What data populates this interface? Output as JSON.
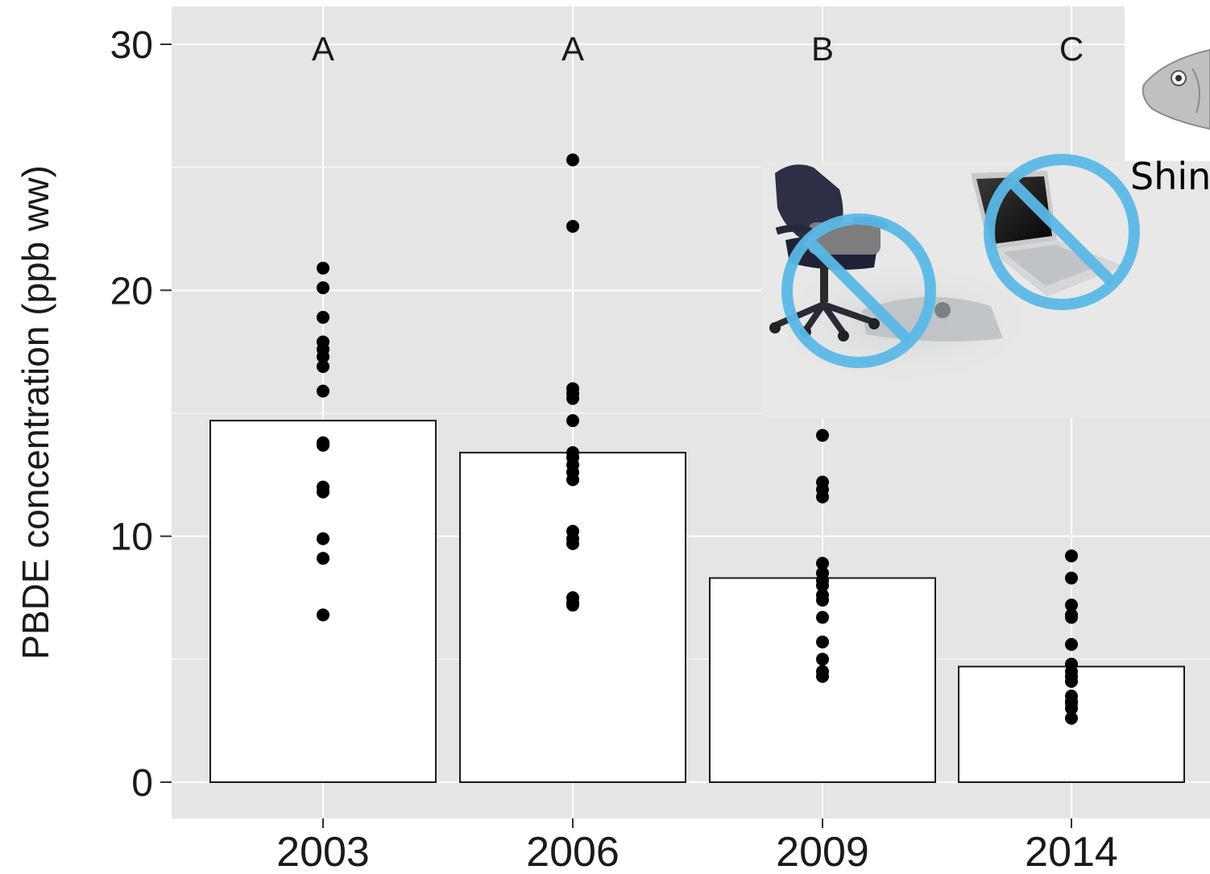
{
  "chart_data": {
    "type": "bar",
    "title": "",
    "xlabel": "",
    "ylabel": "PBDE concentration (ppb ww)",
    "ylim": [
      0,
      30
    ],
    "yticks": [
      0,
      10,
      20,
      30
    ],
    "grid": true,
    "categories": [
      "2003",
      "2006",
      "2009",
      "2014"
    ],
    "values": [
      14.7,
      13.4,
      8.3,
      4.7
    ],
    "group_letters": [
      "A",
      "A",
      "B",
      "C"
    ],
    "points": [
      [
        20.9,
        20.1,
        18.9,
        17.9,
        17.6,
        17.3,
        16.9,
        15.9,
        13.8,
        13.7,
        12.0,
        11.8,
        9.9,
        9.1,
        6.8
      ],
      [
        25.3,
        22.6,
        16.0,
        15.8,
        15.6,
        14.7,
        13.4,
        13.2,
        12.9,
        12.6,
        12.3,
        10.2,
        9.9,
        9.7,
        7.5,
        7.3,
        7.2
      ],
      [
        14.1,
        12.2,
        11.9,
        11.6,
        8.9,
        8.5,
        8.2,
        8.0,
        7.6,
        7.4,
        6.7,
        5.7,
        5.0,
        4.5,
        4.3
      ],
      [
        9.2,
        8.3,
        7.2,
        6.8,
        6.7,
        5.6,
        4.8,
        4.5,
        4.3,
        4.1,
        3.5,
        3.3,
        3.2,
        3.0,
        2.6
      ]
    ],
    "colors": {
      "panel": "#e5e5e5",
      "grid": "#ffffff",
      "bar_fill": "#ffffff",
      "bar_stroke": "#1a1a1a",
      "point": "#000000",
      "no_symbol": "#5bb8e6"
    }
  },
  "overlays": {
    "caption_text": "Shin",
    "icons": [
      "office-chair-icon",
      "car-interior-icon",
      "laptop-icon",
      "fish-icon",
      "prohibited-sign-icon"
    ]
  }
}
